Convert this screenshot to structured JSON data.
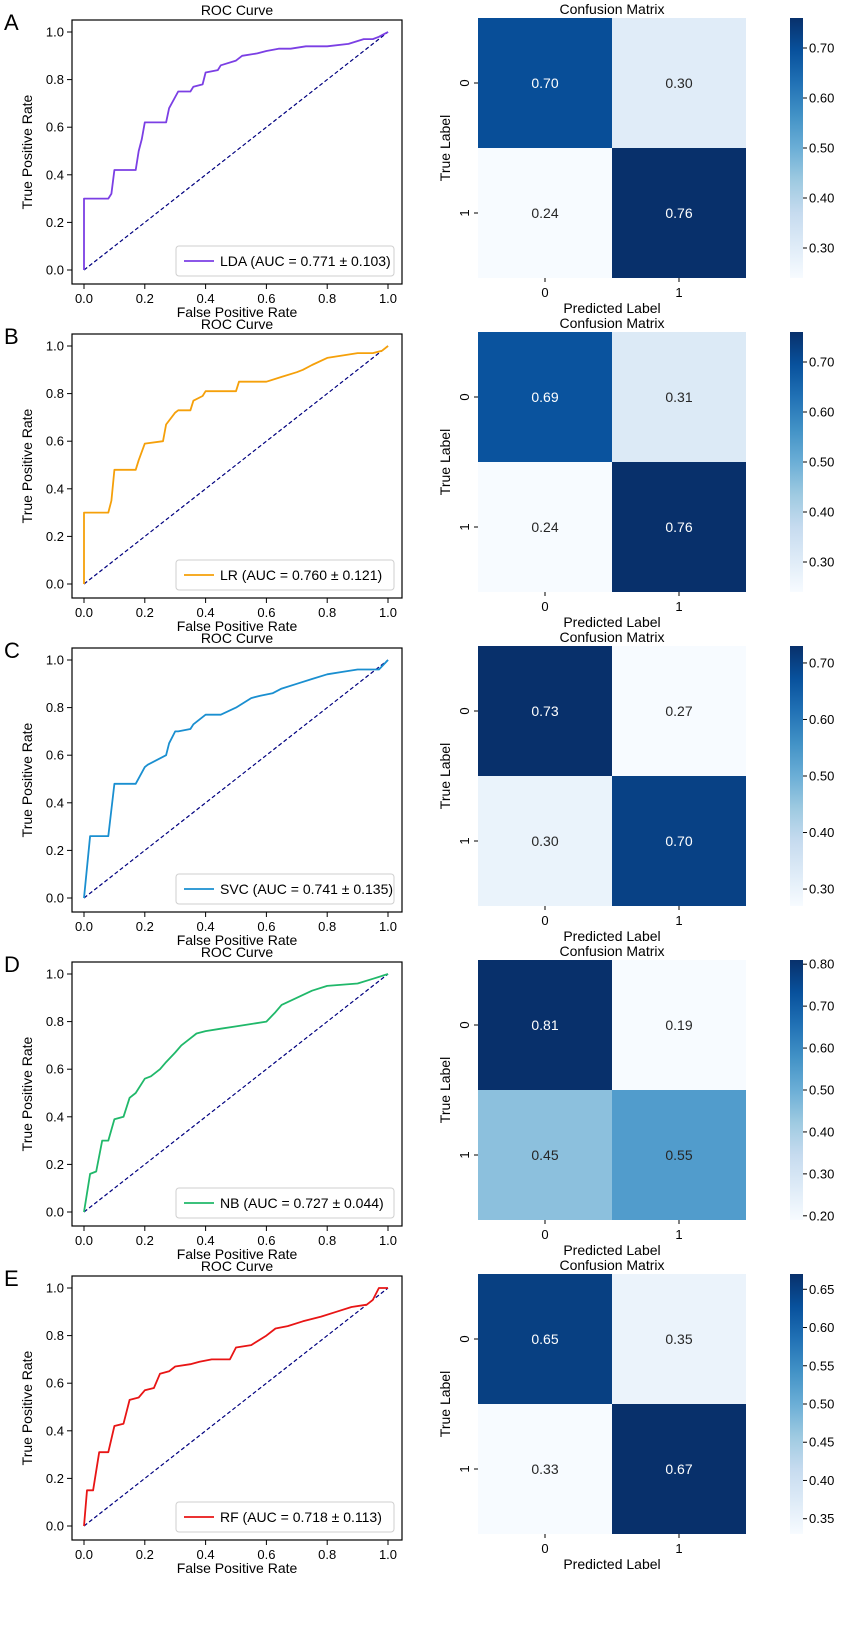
{
  "panels": [
    {
      "letter": "A",
      "roc": {
        "type": "line",
        "title": "ROC Curve",
        "xlabel": "False Positive Rate",
        "ylabel": "True Positive Rate",
        "xlim": [
          0,
          1
        ],
        "ylim": [
          0,
          1
        ],
        "xticks": [
          "0.0",
          "0.2",
          "0.4",
          "0.6",
          "0.8",
          "1.0"
        ],
        "yticks": [
          "0.0",
          "0.2",
          "0.4",
          "0.6",
          "0.8",
          "1.0"
        ],
        "legend": "LDA (AUC = 0.771 ± 0.103)",
        "legend_position": "lower-right",
        "color": "#7b3fe4",
        "fpr": [
          0,
          0,
          0.02,
          0.08,
          0.09,
          0.1,
          0.17,
          0.18,
          0.19,
          0.2,
          0.27,
          0.28,
          0.31,
          0.35,
          0.36,
          0.39,
          0.4,
          0.44,
          0.45,
          0.5,
          0.52,
          0.57,
          0.6,
          0.64,
          0.68,
          0.73,
          0.8,
          0.87,
          0.92,
          0.95,
          0.97,
          1.0
        ],
        "tpr": [
          0,
          0.3,
          0.3,
          0.3,
          0.32,
          0.42,
          0.42,
          0.5,
          0.55,
          0.62,
          0.62,
          0.68,
          0.75,
          0.75,
          0.77,
          0.78,
          0.83,
          0.84,
          0.86,
          0.88,
          0.9,
          0.91,
          0.92,
          0.93,
          0.93,
          0.94,
          0.94,
          0.95,
          0.97,
          0.97,
          0.98,
          1.0
        ]
      },
      "cm": {
        "type": "heatmap",
        "title": "Confusion Matrix",
        "xlabel": "Predicted Label",
        "ylabel": "True Label",
        "categories": [
          "0",
          "1"
        ],
        "values": [
          [
            0.7,
            0.3
          ],
          [
            0.24,
            0.76
          ]
        ],
        "labels": [
          [
            "0.70",
            "0.30"
          ],
          [
            "0.24",
            "0.76"
          ]
        ],
        "vmin": 0.24,
        "vmax": 0.76,
        "colorbar_ticks": [
          0.3,
          0.4,
          0.5,
          0.6,
          0.7
        ],
        "colorbar_tick_labels": [
          "0.30",
          "0.40",
          "0.50",
          "0.60",
          "0.70"
        ]
      }
    },
    {
      "letter": "B",
      "roc": {
        "type": "line",
        "title": "ROC Curve",
        "xlabel": "False Positive Rate",
        "ylabel": "True Positive Rate",
        "xlim": [
          0,
          1
        ],
        "ylim": [
          0,
          1
        ],
        "xticks": [
          "0.0",
          "0.2",
          "0.4",
          "0.6",
          "0.8",
          "1.0"
        ],
        "yticks": [
          "0.0",
          "0.2",
          "0.4",
          "0.6",
          "0.8",
          "1.0"
        ],
        "legend": "LR (AUC = 0.760 ± 0.121)",
        "legend_position": "lower-right",
        "color": "#f5a00a",
        "fpr": [
          0,
          0,
          0.08,
          0.09,
          0.1,
          0.17,
          0.18,
          0.2,
          0.26,
          0.27,
          0.3,
          0.31,
          0.35,
          0.36,
          0.39,
          0.4,
          0.5,
          0.51,
          0.6,
          0.65,
          0.7,
          0.72,
          0.75,
          0.8,
          0.85,
          0.9,
          0.95,
          0.98,
          1.0
        ],
        "tpr": [
          0,
          0.3,
          0.3,
          0.35,
          0.48,
          0.48,
          0.52,
          0.59,
          0.6,
          0.67,
          0.72,
          0.73,
          0.73,
          0.77,
          0.79,
          0.81,
          0.81,
          0.85,
          0.85,
          0.87,
          0.89,
          0.9,
          0.92,
          0.95,
          0.96,
          0.97,
          0.97,
          0.98,
          1.0
        ]
      },
      "cm": {
        "type": "heatmap",
        "title": "Confusion Matrix",
        "xlabel": "Predicted Label",
        "ylabel": "True Label",
        "categories": [
          "0",
          "1"
        ],
        "values": [
          [
            0.69,
            0.31
          ],
          [
            0.24,
            0.76
          ]
        ],
        "labels": [
          [
            "0.69",
            "0.31"
          ],
          [
            "0.24",
            "0.76"
          ]
        ],
        "vmin": 0.24,
        "vmax": 0.76,
        "colorbar_ticks": [
          0.3,
          0.4,
          0.5,
          0.6,
          0.7
        ],
        "colorbar_tick_labels": [
          "0.30",
          "0.40",
          "0.50",
          "0.60",
          "0.70"
        ]
      }
    },
    {
      "letter": "C",
      "roc": {
        "type": "line",
        "title": "ROC Curve",
        "xlabel": "False Positive Rate",
        "ylabel": "True Positive Rate",
        "xlim": [
          0,
          1
        ],
        "ylim": [
          0,
          1
        ],
        "xticks": [
          "0.0",
          "0.2",
          "0.4",
          "0.6",
          "0.8",
          "1.0"
        ],
        "yticks": [
          "0.0",
          "0.2",
          "0.4",
          "0.6",
          "0.8",
          "1.0"
        ],
        "legend": "SVC (AUC = 0.741 ± 0.135)",
        "legend_position": "lower-right",
        "color": "#1a8fd0",
        "fpr": [
          0,
          0.02,
          0.08,
          0.1,
          0.17,
          0.2,
          0.21,
          0.27,
          0.28,
          0.3,
          0.31,
          0.35,
          0.36,
          0.4,
          0.45,
          0.5,
          0.55,
          0.58,
          0.62,
          0.65,
          0.7,
          0.75,
          0.8,
          0.85,
          0.9,
          0.97,
          1.0
        ],
        "tpr": [
          0,
          0.26,
          0.26,
          0.48,
          0.48,
          0.55,
          0.56,
          0.6,
          0.65,
          0.7,
          0.7,
          0.71,
          0.73,
          0.77,
          0.77,
          0.8,
          0.84,
          0.85,
          0.86,
          0.88,
          0.9,
          0.92,
          0.94,
          0.95,
          0.96,
          0.96,
          1.0
        ]
      },
      "cm": {
        "type": "heatmap",
        "title": "Confusion Matrix",
        "xlabel": "Predicted Label",
        "ylabel": "True Label",
        "categories": [
          "0",
          "1"
        ],
        "values": [
          [
            0.73,
            0.27
          ],
          [
            0.3,
            0.7
          ]
        ],
        "labels": [
          [
            "0.73",
            "0.27"
          ],
          [
            "0.30",
            "0.70"
          ]
        ],
        "vmin": 0.27,
        "vmax": 0.73,
        "colorbar_ticks": [
          0.3,
          0.4,
          0.5,
          0.6,
          0.7
        ],
        "colorbar_tick_labels": [
          "0.30",
          "0.40",
          "0.50",
          "0.60",
          "0.70"
        ]
      }
    },
    {
      "letter": "D",
      "roc": {
        "type": "line",
        "title": "ROC Curve",
        "xlabel": "False Positive Rate",
        "ylabel": "True Positive Rate",
        "xlim": [
          0,
          1
        ],
        "ylim": [
          0,
          1
        ],
        "xticks": [
          "0.0",
          "0.2",
          "0.4",
          "0.6",
          "0.8",
          "1.0"
        ],
        "yticks": [
          "0.0",
          "0.2",
          "0.4",
          "0.6",
          "0.8",
          "1.0"
        ],
        "legend": "NB (AUC = 0.727 ± 0.044)",
        "legend_position": "lower-right",
        "color": "#20b86a",
        "fpr": [
          0,
          0.02,
          0.04,
          0.06,
          0.08,
          0.1,
          0.13,
          0.15,
          0.17,
          0.2,
          0.22,
          0.25,
          0.27,
          0.3,
          0.32,
          0.35,
          0.37,
          0.4,
          0.45,
          0.5,
          0.55,
          0.6,
          0.63,
          0.65,
          0.7,
          0.75,
          0.8,
          0.9,
          0.95,
          1.0
        ],
        "tpr": [
          0,
          0.16,
          0.17,
          0.3,
          0.3,
          0.39,
          0.4,
          0.48,
          0.5,
          0.56,
          0.57,
          0.6,
          0.63,
          0.67,
          0.7,
          0.73,
          0.75,
          0.76,
          0.77,
          0.78,
          0.79,
          0.8,
          0.84,
          0.87,
          0.9,
          0.93,
          0.95,
          0.96,
          0.98,
          1.0
        ]
      },
      "cm": {
        "type": "heatmap",
        "title": "Confusion Matrix",
        "xlabel": "Predicted Label",
        "ylabel": "True Label",
        "categories": [
          "0",
          "1"
        ],
        "values": [
          [
            0.81,
            0.19
          ],
          [
            0.45,
            0.55
          ]
        ],
        "labels": [
          [
            "0.81",
            "0.19"
          ],
          [
            "0.45",
            "0.55"
          ]
        ],
        "vmin": 0.19,
        "vmax": 0.81,
        "colorbar_ticks": [
          0.2,
          0.3,
          0.4,
          0.5,
          0.6,
          0.7,
          0.8
        ],
        "colorbar_tick_labels": [
          "0.20",
          "0.30",
          "0.40",
          "0.50",
          "0.60",
          "0.70",
          "0.80"
        ]
      }
    },
    {
      "letter": "E",
      "roc": {
        "type": "line",
        "title": "ROC Curve",
        "xlabel": "False Positive Rate",
        "ylabel": "True Positive Rate",
        "xlim": [
          0,
          1
        ],
        "ylim": [
          0,
          1
        ],
        "xticks": [
          "0.0",
          "0.2",
          "0.4",
          "0.6",
          "0.8",
          "1.0"
        ],
        "yticks": [
          "0.0",
          "0.2",
          "0.4",
          "0.6",
          "0.8",
          "1.0"
        ],
        "legend": "RF (AUC = 0.718 ± 0.113)",
        "legend_position": "lower-right",
        "color": "#e81515",
        "fpr": [
          0,
          0.01,
          0.03,
          0.05,
          0.08,
          0.1,
          0.13,
          0.15,
          0.18,
          0.2,
          0.23,
          0.25,
          0.28,
          0.3,
          0.35,
          0.38,
          0.42,
          0.45,
          0.48,
          0.5,
          0.55,
          0.6,
          0.63,
          0.67,
          0.72,
          0.78,
          0.83,
          0.88,
          0.93,
          0.95,
          0.97,
          1.0
        ],
        "tpr": [
          0,
          0.15,
          0.15,
          0.31,
          0.31,
          0.42,
          0.43,
          0.53,
          0.54,
          0.57,
          0.58,
          0.64,
          0.65,
          0.67,
          0.68,
          0.69,
          0.7,
          0.7,
          0.7,
          0.75,
          0.76,
          0.8,
          0.83,
          0.84,
          0.86,
          0.88,
          0.9,
          0.92,
          0.93,
          0.95,
          1.0,
          1.0
        ]
      },
      "cm": {
        "type": "heatmap",
        "title": "Confusion Matrix",
        "xlabel": "Predicted Label",
        "ylabel": "True Label",
        "categories": [
          "0",
          "1"
        ],
        "values": [
          [
            0.65,
            0.35
          ],
          [
            0.33,
            0.67
          ]
        ],
        "labels": [
          [
            "0.65",
            "0.35"
          ],
          [
            "0.33",
            "0.67"
          ]
        ],
        "vmin": 0.33,
        "vmax": 0.67,
        "colorbar_ticks": [
          0.35,
          0.4,
          0.45,
          0.5,
          0.55,
          0.6,
          0.65
        ],
        "colorbar_tick_labels": [
          "0.35",
          "0.40",
          "0.45",
          "0.50",
          "0.55",
          "0.60",
          "0.65"
        ]
      }
    }
  ]
}
